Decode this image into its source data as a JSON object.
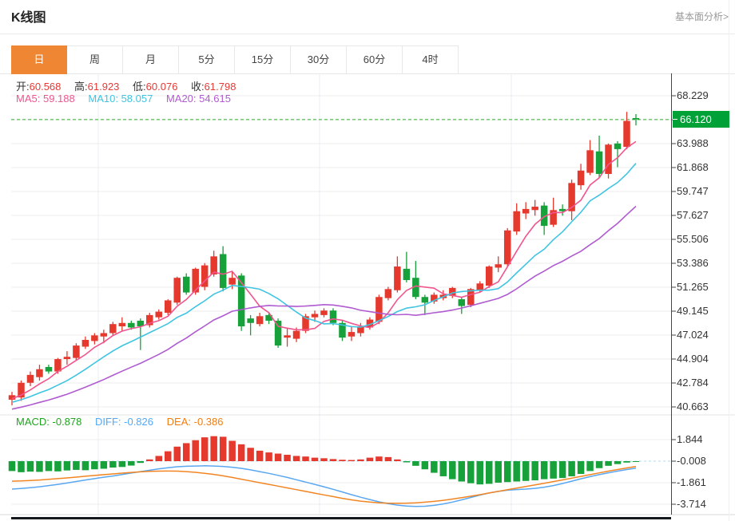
{
  "header": {
    "title": "K线图",
    "link": "基本面分析>"
  },
  "tabs": {
    "active_index": 0,
    "items": [
      {
        "label": "日"
      },
      {
        "label": "周"
      },
      {
        "label": "月"
      },
      {
        "label": "5分"
      },
      {
        "label": "15分"
      },
      {
        "label": "30分"
      },
      {
        "label": "60分"
      },
      {
        "label": "4时"
      }
    ]
  },
  "indicators": {
    "ohlc": [
      {
        "label": "开:",
        "value": "60.568"
      },
      {
        "label": "高:",
        "value": "61.923"
      },
      {
        "label": "低:",
        "value": "60.076"
      },
      {
        "label": "收:",
        "value": "61.798"
      }
    ],
    "ma": [
      {
        "label": "MA5:",
        "value": "59.188",
        "color": "#f0558e"
      },
      {
        "label": "MA10:",
        "value": "58.057",
        "color": "#3fc4e2"
      },
      {
        "label": "MA20:",
        "value": "54.615",
        "color": "#b05bd0"
      }
    ],
    "macd": [
      {
        "label": "MACD:",
        "value": "-0.878",
        "color": "#1fa51f"
      },
      {
        "label": "DIFF:",
        "value": "-0.826",
        "color": "#54a8f5"
      },
      {
        "label": "DEA:",
        "value": "-0.386",
        "color": "#f57c0b"
      }
    ]
  },
  "price_tag": "66.120",
  "chart_data": {
    "type": "candlestick",
    "title": "K线图",
    "price_axis": {
      "labels": [
        "68.229",
        "66.120",
        "63.988",
        "61.868",
        "59.747",
        "57.627",
        "55.506",
        "53.386",
        "51.265",
        "49.145",
        "47.024",
        "44.904",
        "42.784",
        "40.663"
      ],
      "tag_index": 1,
      "top_price": 68.229,
      "price_step": 2.1205
    },
    "current_price": 66.12,
    "candles": [
      [
        41.3,
        42.0,
        40.8,
        41.7
      ],
      [
        41.5,
        43.0,
        41.2,
        42.8
      ],
      [
        42.8,
        43.8,
        42.5,
        43.5
      ],
      [
        43.3,
        44.4,
        43.0,
        44.0
      ],
      [
        44.2,
        44.4,
        43.6,
        43.8
      ],
      [
        43.8,
        45.0,
        43.6,
        44.9
      ],
      [
        44.9,
        45.6,
        44.4,
        45.1
      ],
      [
        45.0,
        46.3,
        44.8,
        46.1
      ],
      [
        46.0,
        46.9,
        45.8,
        46.6
      ],
      [
        46.5,
        47.2,
        46.2,
        47.0
      ],
      [
        46.9,
        47.5,
        46.3,
        47.2
      ],
      [
        47.2,
        48.2,
        47.0,
        48.0
      ],
      [
        47.8,
        48.6,
        47.4,
        48.1
      ],
      [
        48.1,
        48.3,
        47.5,
        47.7
      ],
      [
        48.3,
        48.5,
        45.7,
        47.8
      ],
      [
        47.9,
        49.0,
        47.7,
        48.8
      ],
      [
        48.6,
        49.3,
        48.4,
        49.1
      ],
      [
        49.0,
        50.2,
        48.8,
        50.1
      ],
      [
        49.9,
        52.2,
        49.7,
        52.1
      ],
      [
        52.2,
        52.5,
        50.6,
        50.8
      ],
      [
        50.8,
        53.0,
        50.6,
        52.9
      ],
      [
        51.3,
        53.4,
        51.0,
        53.2
      ],
      [
        52.4,
        54.5,
        52.2,
        54.0
      ],
      [
        54.2,
        54.9,
        50.9,
        51.2
      ],
      [
        51.5,
        52.6,
        51.1,
        52.1
      ],
      [
        52.3,
        52.5,
        47.4,
        47.8
      ],
      [
        48.5,
        48.8,
        47.0,
        48.1
      ],
      [
        48.0,
        49.0,
        47.8,
        48.7
      ],
      [
        48.8,
        49.0,
        48.0,
        48.3
      ],
      [
        48.3,
        48.5,
        45.9,
        46.1
      ],
      [
        46.8,
        47.6,
        46.0,
        47.0
      ],
      [
        46.7,
        47.7,
        46.4,
        47.4
      ],
      [
        47.4,
        48.9,
        47.2,
        48.7
      ],
      [
        48.6,
        49.2,
        48.2,
        48.9
      ],
      [
        48.8,
        49.4,
        48.6,
        49.2
      ],
      [
        49.2,
        49.4,
        47.9,
        48.1
      ],
      [
        48.1,
        48.3,
        46.5,
        46.8
      ],
      [
        46.9,
        47.8,
        46.5,
        47.3
      ],
      [
        47.2,
        48.1,
        46.9,
        47.8
      ],
      [
        47.7,
        48.6,
        47.5,
        48.4
      ],
      [
        48.2,
        50.6,
        48.0,
        50.4
      ],
      [
        50.3,
        51.3,
        50.1,
        51.1
      ],
      [
        51.0,
        54.0,
        50.8,
        53.1
      ],
      [
        52.9,
        54.4,
        51.7,
        51.9
      ],
      [
        52.1,
        53.6,
        50.2,
        50.4
      ],
      [
        50.4,
        50.6,
        48.8,
        49.9
      ],
      [
        50.0,
        50.8,
        49.8,
        50.6
      ],
      [
        50.3,
        51.0,
        50.1,
        50.6
      ],
      [
        50.5,
        51.3,
        50.3,
        51.2
      ],
      [
        50.2,
        50.4,
        48.9,
        49.6
      ],
      [
        49.7,
        51.2,
        49.5,
        51.1
      ],
      [
        51.0,
        51.8,
        50.8,
        51.6
      ],
      [
        51.4,
        53.2,
        51.2,
        53.1
      ],
      [
        53.0,
        54.0,
        52.6,
        53.3
      ],
      [
        53.3,
        56.5,
        53.1,
        56.3
      ],
      [
        56.2,
        58.7,
        55.9,
        58.0
      ],
      [
        57.8,
        58.8,
        57.3,
        58.2
      ],
      [
        58.1,
        59.0,
        57.6,
        58.4
      ],
      [
        58.5,
        58.8,
        55.9,
        56.7
      ],
      [
        56.8,
        59.2,
        56.6,
        58.1
      ],
      [
        58.2,
        58.6,
        57.6,
        58.0
      ],
      [
        58.0,
        60.8,
        57.2,
        60.5
      ],
      [
        60.3,
        62.2,
        59.9,
        61.6
      ],
      [
        61.4,
        64.3,
        61.2,
        63.4
      ],
      [
        63.3,
        64.7,
        61.0,
        61.3
      ],
      [
        61.3,
        64.0,
        60.9,
        63.9
      ],
      [
        64.0,
        64.2,
        61.9,
        63.5
      ],
      [
        63.7,
        66.8,
        63.5,
        66.0
      ],
      [
        66.25,
        66.6,
        65.6,
        66.15
      ]
    ],
    "ma_periods": [
      5,
      10,
      20
    ],
    "macd_panel": {
      "labels": [
        "1.844",
        "-0.008",
        "-1.861",
        "-3.714"
      ],
      "hist": [
        -0.85,
        -0.95,
        -0.9,
        -0.92,
        -0.85,
        -0.88,
        -0.8,
        -0.75,
        -0.78,
        -0.7,
        -0.65,
        -0.55,
        -0.5,
        -0.38,
        -0.15,
        0.15,
        0.45,
        0.85,
        1.25,
        1.55,
        1.8,
        2.05,
        2.15,
        2.1,
        1.75,
        1.45,
        1.15,
        0.9,
        0.75,
        0.65,
        0.55,
        0.45,
        0.4,
        0.3,
        0.25,
        0.18,
        0.12,
        0.1,
        0.15,
        0.3,
        0.4,
        0.35,
        0.15,
        -0.1,
        -0.4,
        -0.7,
        -1.0,
        -1.3,
        -1.55,
        -1.75,
        -1.9,
        -2.0,
        -1.95,
        -1.85,
        -1.8,
        -1.75,
        -1.7,
        -1.65,
        -1.55,
        -1.5,
        -1.45,
        -1.3,
        -1.1,
        -0.85,
        -0.6,
        -0.4,
        -0.25,
        -0.12,
        -0.05
      ],
      "diff": [
        -2.4,
        -2.35,
        -2.28,
        -2.2,
        -2.1,
        -2.0,
        -1.88,
        -1.75,
        -1.62,
        -1.5,
        -1.38,
        -1.28,
        -1.15,
        -1.02,
        -0.9,
        -0.78,
        -0.66,
        -0.56,
        -0.48,
        -0.44,
        -0.42,
        -0.4,
        -0.42,
        -0.45,
        -0.52,
        -0.62,
        -0.75,
        -0.9,
        -1.05,
        -1.22,
        -1.4,
        -1.6,
        -1.8,
        -2.0,
        -2.2,
        -2.42,
        -2.65,
        -2.88,
        -3.1,
        -3.3,
        -3.5,
        -3.65,
        -3.78,
        -3.86,
        -3.9,
        -3.88,
        -3.8,
        -3.68,
        -3.52,
        -3.33,
        -3.12,
        -2.92,
        -2.74,
        -2.6,
        -2.5,
        -2.44,
        -2.4,
        -2.34,
        -2.24,
        -2.1,
        -1.92,
        -1.72,
        -1.52,
        -1.33,
        -1.16,
        -1.0,
        -0.86,
        -0.72,
        -0.6
      ],
      "dea": [
        -1.72,
        -1.7,
        -1.66,
        -1.62,
        -1.56,
        -1.5,
        -1.44,
        -1.37,
        -1.3,
        -1.23,
        -1.16,
        -1.1,
        -1.03,
        -0.97,
        -0.92,
        -0.88,
        -0.86,
        -0.85,
        -0.86,
        -0.9,
        -0.96,
        -1.04,
        -1.14,
        -1.26,
        -1.4,
        -1.55,
        -1.7,
        -1.85,
        -2.0,
        -2.15,
        -2.3,
        -2.45,
        -2.6,
        -2.75,
        -2.9,
        -3.05,
        -3.2,
        -3.33,
        -3.44,
        -3.52,
        -3.58,
        -3.61,
        -3.62,
        -3.61,
        -3.58,
        -3.53,
        -3.46,
        -3.37,
        -3.26,
        -3.14,
        -3.01,
        -2.88,
        -2.74,
        -2.6,
        -2.46,
        -2.32,
        -2.18,
        -2.04,
        -1.9,
        -1.76,
        -1.61,
        -1.46,
        -1.31,
        -1.16,
        -1.01,
        -0.86,
        -0.72,
        -0.58,
        -0.45
      ]
    },
    "colors": {
      "up": "#e6392e",
      "down": "#17a13a",
      "ma5": "#f0558e",
      "ma10": "#3fc4e2",
      "ma20": "#b05bd0",
      "diff_line": "#5aa7f0",
      "dea_line": "#f28522",
      "price_line": "#2eac2e",
      "tag_bg": "#00a238",
      "tab_active": "#ee8633"
    }
  }
}
